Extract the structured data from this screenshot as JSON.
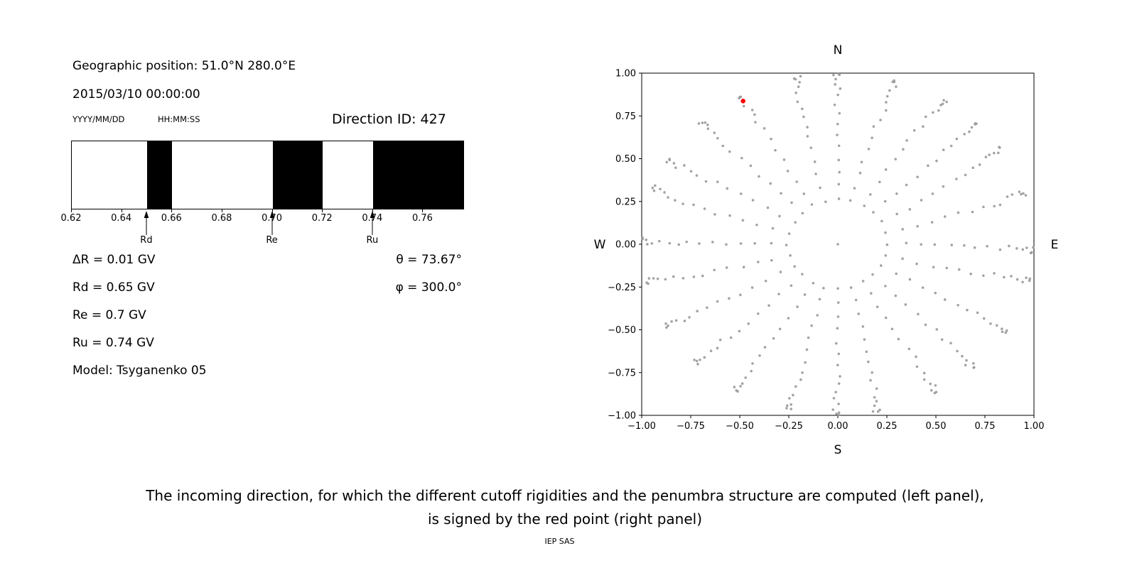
{
  "colors": {
    "background": "#ffffff",
    "axis": "#000000",
    "band": "#000000",
    "dot_gray": "#999999",
    "red_point": "#ff0000"
  },
  "left_panel": {
    "geo_position": "Geographic position: 51.0°N 280.0°E",
    "datetime": "2015/03/10 00:00:00",
    "date_format_label": "YYYY/MM/DD",
    "time_format_label": "HH:MM:SS",
    "direction_id": "Direction ID: 427",
    "values": {
      "delta_r": "ΔR = 0.01 GV",
      "rd": "Rd = 0.65 GV",
      "re": "Re = 0.7 GV",
      "ru": "Ru = 0.74 GV",
      "model": "Model: Tsyganenko 05",
      "theta": "θ = 73.67°",
      "phi": "φ = 300.0°"
    }
  },
  "chart_data": [
    {
      "type": "bar",
      "name": "penumbra-structure",
      "description": "Penumbra structure: black bands are forbidden rigidity intervals (GV)",
      "xmin": 0.62,
      "xmax": 0.776,
      "tick_values": [
        0.62,
        0.64,
        0.66,
        0.68,
        0.7,
        0.72,
        0.74,
        0.76
      ],
      "tick_labels": [
        "0.62",
        "0.64",
        "0.66",
        "0.68",
        "0.70",
        "0.72",
        "0.74",
        "0.76"
      ],
      "forbidden_bands": [
        [
          0.65,
          0.66
        ],
        [
          0.7,
          0.72
        ],
        [
          0.74,
          0.776
        ]
      ],
      "markers": [
        {
          "label": "Rd",
          "value": 0.65
        },
        {
          "label": "Re",
          "value": 0.7
        },
        {
          "label": "Ru",
          "value": 0.74
        }
      ]
    },
    {
      "type": "scatter",
      "name": "incoming-direction-map",
      "xlim": [
        -1,
        1
      ],
      "ylim": [
        -1,
        1
      ],
      "tick_values": [
        -1,
        -0.75,
        -0.5,
        -0.25,
        0,
        0.25,
        0.5,
        0.75,
        1
      ],
      "tick_labels": [
        "−1.00",
        "−0.75",
        "−0.50",
        "−0.25",
        "0.00",
        "0.25",
        "0.50",
        "0.75",
        "1.00"
      ],
      "compass": {
        "top": "N",
        "bottom": "S",
        "left": "W",
        "right": "E"
      },
      "spokes": {
        "azimuth_start_deg": 0,
        "azimuth_step_deg": 15,
        "azimuth_count": 24,
        "zenith_start_deg": 15,
        "zenith_step_deg": 5,
        "zenith_end_deg": 90,
        "radius_rule": "r = sin(zenith)"
      },
      "center_dot": {
        "x": 0,
        "y": 0
      },
      "red_point": {
        "x": -0.483,
        "y": 0.837
      }
    }
  ],
  "caption": {
    "line1": "The incoming direction, for which the different cutoff rigidities and the penumbra structure are computed (left panel),",
    "line2": "is signed by the red point (right panel)"
  },
  "credit": "IEP SAS"
}
